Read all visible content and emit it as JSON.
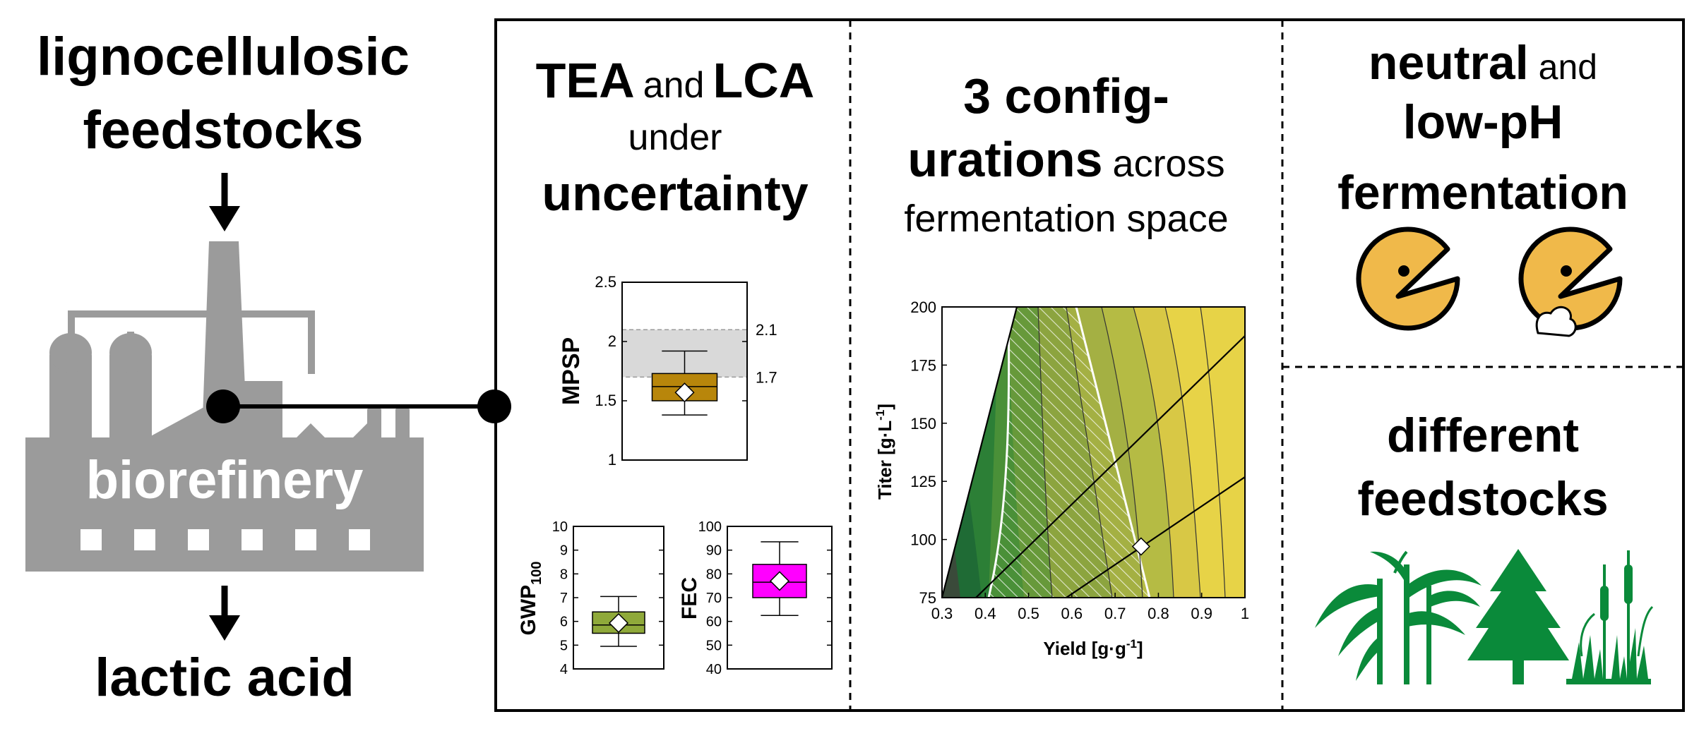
{
  "left": {
    "feedstock_line1": "lignocellulosic",
    "feedstock_line2": "feedstocks",
    "factory_label": "biorefinery",
    "product": "lactic acid"
  },
  "panel_tea": {
    "heading_tea": "TEA",
    "heading_and": "and",
    "heading_lca": "LCA",
    "heading_under": "under",
    "heading_uncertainty": "uncertainty",
    "box_colors": {
      "mpsp": "#b8860b",
      "gwp": "#8fa93a",
      "fec": "#ff00ff",
      "band": "#d9d9d9"
    }
  },
  "panel_config": {
    "heading_line1": "3 config-",
    "heading_line2_bold": "urations",
    "heading_line2_rest": "across",
    "heading_line3": "fermentation space"
  },
  "panel_ph": {
    "heading_neutral": "neutral",
    "heading_and": "and",
    "heading_lowph": "low-pH",
    "heading_fermentation": "fermentation",
    "icons": [
      "pacman-neutral-icon",
      "pacman-strong-icon"
    ],
    "icon_color": "#f0b94a"
  },
  "panel_feed": {
    "heading_line1": "different",
    "heading_line2": "feedstocks",
    "icons": [
      "grass-icon",
      "tree-icon",
      "cattail-icon"
    ],
    "icon_color": "#0a8a3a"
  },
  "chart_data": [
    {
      "type": "box",
      "ylabel": "MPSP",
      "ylim": [
        1,
        2.5
      ],
      "yticks": [
        "1",
        "1.5",
        "2",
        "2.5"
      ],
      "band": [
        1.7,
        2.1
      ],
      "band_labels": [
        "2.1",
        "1.7"
      ],
      "box": {
        "whisker_low": 1.38,
        "q1": 1.5,
        "median": 1.62,
        "q3": 1.73,
        "whisker_high": 1.92,
        "mean": 1.57
      }
    },
    {
      "type": "box",
      "ylabel": "GWP",
      "ylabel_sub": "100",
      "ylim": [
        4,
        10
      ],
      "yticks": [
        "4",
        "5",
        "6",
        "7",
        "8",
        "9",
        "10"
      ],
      "box": {
        "whisker_low": 4.95,
        "q1": 5.5,
        "median": 5.85,
        "q3": 6.4,
        "whisker_high": 7.05,
        "mean": 5.93
      }
    },
    {
      "type": "box",
      "ylabel": "FEC",
      "ylim": [
        40,
        100
      ],
      "yticks": [
        "40",
        "50",
        "60",
        "70",
        "80",
        "90",
        "100"
      ],
      "box": {
        "whisker_low": 62.5,
        "q1": 70,
        "median": 76.5,
        "q3": 84,
        "whisker_high": 93.5,
        "mean": 77
      }
    },
    {
      "type": "heatmap",
      "xlabel": "Yield [g·g",
      "xlabel_sup": "-1",
      "ylabel": "Titer [g·L",
      "ylabel_sup": "-1",
      "xlim": [
        0.3,
        1
      ],
      "ylim": [
        75,
        200
      ],
      "xticks": [
        "0.3",
        "0.4",
        "0.5",
        "0.6",
        "0.7",
        "0.8",
        "0.9",
        "1"
      ],
      "yticks": [
        "75",
        "100",
        "125",
        "150",
        "175",
        "200"
      ],
      "marker": {
        "yield": 0.76,
        "titer": 97
      }
    }
  ]
}
